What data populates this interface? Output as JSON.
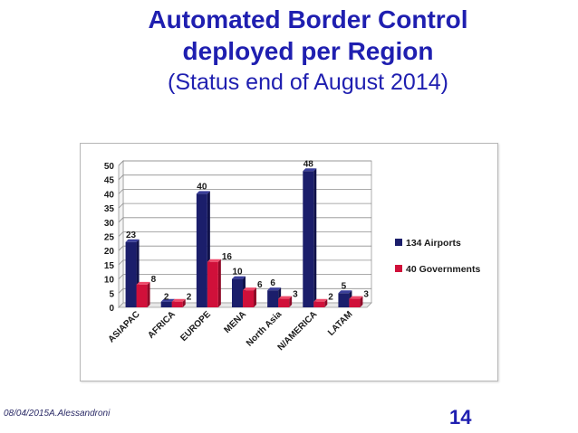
{
  "slide": {
    "title_line1": "Automated Border Control",
    "title_line2": "deployed per Region",
    "subtitle": "(Status end of August 2014)",
    "footer": "08/04/2015A.Alessandroni",
    "page_number": "14"
  },
  "chart_data": {
    "type": "bar",
    "title": "",
    "xlabel": "",
    "ylabel": "",
    "categories": [
      "ASIAPAC",
      "AFRICA",
      "EUROPE",
      "MENA",
      "North Asia",
      "N/AMERICA",
      "LATAM"
    ],
    "series": [
      {
        "name": "134 Airports",
        "color": "#1b1e6b",
        "values": [
          23,
          2,
          40,
          10,
          6,
          48,
          5
        ]
      },
      {
        "name": "40 Governments",
        "color": "#d0103a",
        "values": [
          8,
          2,
          16,
          6,
          3,
          2,
          3
        ]
      }
    ],
    "ylim": [
      0,
      50
    ],
    "yticks": [
      0,
      5,
      10,
      15,
      20,
      25,
      30,
      35,
      40,
      45,
      50
    ],
    "grid": true,
    "legend_position": "right"
  }
}
